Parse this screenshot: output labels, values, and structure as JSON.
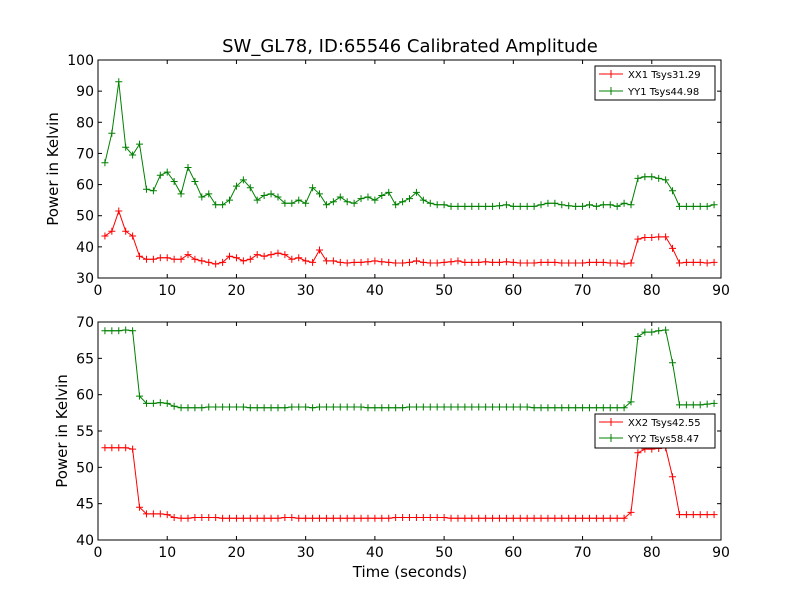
{
  "figure": {
    "title": "SW_GL78, ID:65546 Calibrated Amplitude",
    "xlabel": "Time (seconds)"
  },
  "colors": {
    "red": "#ff0000",
    "green": "#008000"
  },
  "chart_data": [
    {
      "type": "line",
      "title": "SW_GL78, ID:65546 Calibrated Amplitude",
      "xlabel": "",
      "ylabel": "Power in Kelvin",
      "xlim": [
        0,
        90
      ],
      "ylim": [
        30,
        100
      ],
      "xticks": [
        0,
        10,
        20,
        30,
        40,
        50,
        60,
        70,
        80,
        90
      ],
      "yticks": [
        30,
        40,
        50,
        60,
        70,
        80,
        90,
        100
      ],
      "grid": false,
      "legend_position": "top-right",
      "marker": "+",
      "x": [
        1,
        2,
        3,
        4,
        5,
        6,
        7,
        8,
        9,
        10,
        11,
        12,
        13,
        14,
        15,
        16,
        17,
        18,
        19,
        20,
        21,
        22,
        23,
        24,
        25,
        26,
        27,
        28,
        29,
        30,
        31,
        32,
        33,
        34,
        35,
        36,
        37,
        38,
        39,
        40,
        41,
        42,
        43,
        44,
        45,
        46,
        47,
        48,
        49,
        50,
        51,
        52,
        53,
        54,
        55,
        56,
        57,
        58,
        59,
        60,
        61,
        62,
        63,
        64,
        65,
        66,
        67,
        68,
        69,
        70,
        71,
        72,
        73,
        74,
        75,
        76,
        77,
        78,
        79,
        80,
        81,
        82,
        83,
        84,
        85,
        86,
        87,
        88,
        89
      ],
      "series": [
        {
          "name": "XX1 Tsys31.29",
          "color": "#ff0000",
          "values": [
            43.5,
            45.0,
            51.5,
            45.0,
            43.5,
            37.0,
            36.0,
            36.0,
            36.5,
            36.5,
            36.0,
            36.0,
            37.5,
            36.0,
            35.5,
            35.0,
            34.5,
            35.0,
            37.0,
            36.5,
            35.5,
            36.0,
            37.5,
            37.0,
            37.5,
            38.0,
            37.5,
            36.0,
            36.5,
            35.5,
            35.0,
            39.0,
            35.5,
            35.5,
            35.0,
            34.8,
            35.0,
            35.0,
            35.2,
            35.5,
            35.2,
            35.0,
            34.8,
            34.8,
            35.0,
            35.5,
            35.0,
            34.8,
            34.8,
            35.0,
            35.2,
            35.5,
            35.0,
            35.0,
            35.0,
            35.2,
            35.0,
            35.0,
            35.2,
            35.0,
            34.8,
            34.8,
            34.8,
            35.0,
            35.0,
            35.0,
            34.8,
            34.8,
            34.8,
            34.8,
            35.0,
            35.0,
            35.0,
            34.8,
            34.8,
            34.5,
            34.8,
            42.5,
            43.0,
            43.0,
            43.2,
            43.2,
            39.5,
            34.8,
            35.0,
            35.0,
            35.0,
            34.8,
            35.0
          ]
        },
        {
          "name": "YY1 Tsys44.98",
          "color": "#008000",
          "values": [
            67.0,
            76.5,
            93.0,
            72.0,
            69.5,
            73.0,
            58.5,
            58.0,
            63.0,
            64.0,
            61.0,
            57.0,
            65.5,
            61.0,
            56.0,
            57.0,
            53.5,
            53.5,
            55.0,
            59.5,
            61.5,
            59.0,
            55.0,
            56.5,
            57.0,
            56.0,
            54.0,
            54.0,
            55.0,
            54.0,
            59.0,
            57.0,
            53.5,
            54.5,
            56.0,
            54.5,
            54.0,
            55.5,
            56.0,
            55.0,
            56.5,
            57.5,
            53.5,
            54.5,
            55.5,
            57.5,
            55.0,
            54.0,
            53.5,
            53.5,
            53.0,
            53.0,
            53.0,
            53.0,
            53.0,
            53.0,
            53.0,
            53.2,
            53.5,
            53.0,
            53.0,
            53.0,
            53.0,
            53.5,
            54.0,
            54.0,
            53.5,
            53.2,
            53.0,
            53.0,
            53.5,
            53.0,
            53.5,
            53.5,
            53.0,
            54.0,
            53.5,
            62.0,
            62.5,
            62.5,
            62.0,
            61.5,
            58.0,
            53.0,
            53.0,
            53.0,
            53.0,
            53.0,
            53.5
          ]
        }
      ]
    },
    {
      "type": "line",
      "title": "",
      "xlabel": "Time (seconds)",
      "ylabel": "Power in Kelvin",
      "xlim": [
        0,
        90
      ],
      "ylim": [
        40,
        70
      ],
      "xticks": [
        0,
        10,
        20,
        30,
        40,
        50,
        60,
        70,
        80,
        90
      ],
      "yticks": [
        40,
        45,
        50,
        55,
        60,
        65,
        70
      ],
      "grid": false,
      "legend_position": "center-right",
      "marker": "+",
      "x": [
        1,
        2,
        3,
        4,
        5,
        6,
        7,
        8,
        9,
        10,
        11,
        12,
        13,
        14,
        15,
        16,
        17,
        18,
        19,
        20,
        21,
        22,
        23,
        24,
        25,
        26,
        27,
        28,
        29,
        30,
        31,
        32,
        33,
        34,
        35,
        36,
        37,
        38,
        39,
        40,
        41,
        42,
        43,
        44,
        45,
        46,
        47,
        48,
        49,
        50,
        51,
        52,
        53,
        54,
        55,
        56,
        57,
        58,
        59,
        60,
        61,
        62,
        63,
        64,
        65,
        66,
        67,
        68,
        69,
        70,
        71,
        72,
        73,
        74,
        75,
        76,
        77,
        78,
        79,
        80,
        81,
        82,
        83,
        84,
        85,
        86,
        87,
        88,
        89
      ],
      "series": [
        {
          "name": "XX2 Tsys42.55",
          "color": "#ff0000",
          "values": [
            52.7,
            52.7,
            52.7,
            52.7,
            52.5,
            44.5,
            43.6,
            43.6,
            43.6,
            43.5,
            43.1,
            43.0,
            43.0,
            43.1,
            43.1,
            43.1,
            43.1,
            43.0,
            43.0,
            43.0,
            43.0,
            43.0,
            43.0,
            43.0,
            43.0,
            43.0,
            43.1,
            43.1,
            43.0,
            43.0,
            43.0,
            43.0,
            43.0,
            43.0,
            43.0,
            43.0,
            43.0,
            43.0,
            43.0,
            43.0,
            43.0,
            43.0,
            43.1,
            43.1,
            43.1,
            43.1,
            43.1,
            43.1,
            43.1,
            43.1,
            43.0,
            43.0,
            43.0,
            43.0,
            43.0,
            43.0,
            43.0,
            43.0,
            43.0,
            43.0,
            43.0,
            43.0,
            43.0,
            43.0,
            43.0,
            43.0,
            43.0,
            43.0,
            43.0,
            43.0,
            43.0,
            43.0,
            43.0,
            43.0,
            43.0,
            43.0,
            43.8,
            52.0,
            52.5,
            52.5,
            52.6,
            52.7,
            48.7,
            43.5,
            43.5,
            43.5,
            43.5,
            43.5,
            43.5
          ]
        },
        {
          "name": "YY2 Tsys58.47",
          "color": "#008000",
          "values": [
            68.8,
            68.8,
            68.8,
            68.9,
            68.8,
            59.8,
            58.8,
            58.8,
            58.9,
            58.8,
            58.4,
            58.2,
            58.2,
            58.2,
            58.2,
            58.3,
            58.3,
            58.3,
            58.3,
            58.3,
            58.3,
            58.2,
            58.2,
            58.2,
            58.2,
            58.2,
            58.2,
            58.3,
            58.3,
            58.3,
            58.2,
            58.3,
            58.3,
            58.3,
            58.3,
            58.3,
            58.3,
            58.3,
            58.2,
            58.2,
            58.2,
            58.2,
            58.2,
            58.2,
            58.3,
            58.3,
            58.3,
            58.3,
            58.3,
            58.3,
            58.3,
            58.3,
            58.3,
            58.3,
            58.3,
            58.3,
            58.3,
            58.3,
            58.3,
            58.3,
            58.3,
            58.3,
            58.2,
            58.2,
            58.2,
            58.2,
            58.2,
            58.2,
            58.2,
            58.2,
            58.2,
            58.2,
            58.2,
            58.2,
            58.2,
            58.2,
            59.0,
            68.0,
            68.6,
            68.6,
            68.8,
            68.9,
            64.4,
            58.6,
            58.6,
            58.6,
            58.6,
            58.7,
            58.8
          ]
        }
      ]
    }
  ]
}
